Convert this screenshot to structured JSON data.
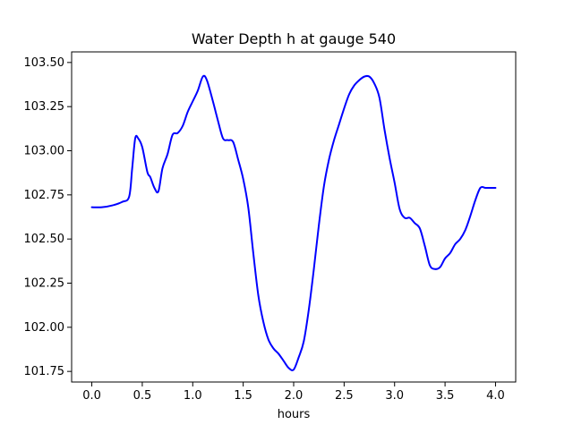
{
  "chart_data": {
    "type": "line",
    "title": "Water Depth h at gauge 540",
    "xlabel": "hours",
    "ylabel": "",
    "xlim": [
      -0.2,
      4.2
    ],
    "ylim": [
      101.69,
      103.56
    ],
    "grid": false,
    "x_ticks": [
      0.0,
      0.5,
      1.0,
      1.5,
      2.0,
      2.5,
      3.0,
      3.5,
      4.0
    ],
    "x_tick_labels": [
      "0.0",
      "0.5",
      "1.0",
      "1.5",
      "2.0",
      "2.5",
      "3.0",
      "3.5",
      "4.0"
    ],
    "y_ticks": [
      101.75,
      102.0,
      102.25,
      102.5,
      102.75,
      103.0,
      103.25,
      103.5
    ],
    "y_tick_labels": [
      "101.75",
      "102.00",
      "102.25",
      "102.50",
      "102.75",
      "103.00",
      "103.25",
      "103.50"
    ],
    "series": [
      {
        "color": "#0000ff",
        "x": [
          0.0,
          0.1,
          0.2,
          0.3,
          0.37,
          0.4,
          0.43,
          0.46,
          0.5,
          0.55,
          0.58,
          0.62,
          0.66,
          0.7,
          0.75,
          0.8,
          0.85,
          0.9,
          0.95,
          1.0,
          1.05,
          1.1,
          1.14,
          1.2,
          1.25,
          1.3,
          1.35,
          1.4,
          1.45,
          1.5,
          1.55,
          1.6,
          1.65,
          1.7,
          1.75,
          1.8,
          1.85,
          1.9,
          1.95,
          2.0,
          2.05,
          2.1,
          2.15,
          2.2,
          2.25,
          2.3,
          2.35,
          2.4,
          2.45,
          2.5,
          2.55,
          2.6,
          2.65,
          2.7,
          2.75,
          2.8,
          2.85,
          2.9,
          2.95,
          3.0,
          3.05,
          3.1,
          3.15,
          3.2,
          3.25,
          3.3,
          3.35,
          3.4,
          3.45,
          3.5,
          3.55,
          3.6,
          3.65,
          3.7,
          3.75,
          3.8,
          3.85,
          3.9,
          3.95,
          4.0
        ],
        "y": [
          102.68,
          102.68,
          102.69,
          102.71,
          102.74,
          102.9,
          103.07,
          103.07,
          103.02,
          102.88,
          102.85,
          102.79,
          102.77,
          102.9,
          102.98,
          103.09,
          103.1,
          103.14,
          103.22,
          103.28,
          103.34,
          103.42,
          103.4,
          103.28,
          103.17,
          103.07,
          103.06,
          103.05,
          102.95,
          102.84,
          102.68,
          102.42,
          102.18,
          102.03,
          101.93,
          101.88,
          101.85,
          101.81,
          101.77,
          101.76,
          101.83,
          101.92,
          102.1,
          102.33,
          102.58,
          102.8,
          102.95,
          103.06,
          103.15,
          103.24,
          103.32,
          103.37,
          103.4,
          103.42,
          103.42,
          103.38,
          103.3,
          103.12,
          102.96,
          102.82,
          102.67,
          102.62,
          102.62,
          102.59,
          102.56,
          102.46,
          102.35,
          102.33,
          102.34,
          102.39,
          102.42,
          102.47,
          102.5,
          102.55,
          102.63,
          102.72,
          102.79,
          102.79,
          102.79,
          102.79
        ]
      }
    ]
  }
}
